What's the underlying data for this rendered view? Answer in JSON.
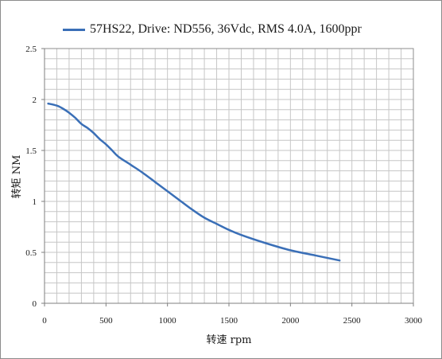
{
  "chart_data": {
    "type": "line",
    "title": "",
    "xlabel": "转速 rpm",
    "ylabel": "转矩 NM",
    "xlim": [
      0,
      3000
    ],
    "ylim": [
      0,
      2.5
    ],
    "x_ticks": [
      "0",
      "500",
      "1000",
      "1500",
      "2000",
      "2500",
      "3000"
    ],
    "y_ticks": [
      "0",
      "0.5",
      "1",
      "1.5",
      "2",
      "2.5"
    ],
    "grid": true,
    "legend_position": "top",
    "series": [
      {
        "name": "57HS22, Drive: ND556, 36Vdc, RMS 4.0A, 1600ppr",
        "color": "#3a6fb7",
        "x": [
          30,
          100,
          150,
          200,
          250,
          300,
          350,
          400,
          450,
          500,
          550,
          600,
          700,
          800,
          900,
          1000,
          1100,
          1200,
          1300,
          1400,
          1500,
          1600,
          1800,
          2000,
          2200,
          2400
        ],
        "y": [
          1.96,
          1.94,
          1.91,
          1.87,
          1.82,
          1.76,
          1.72,
          1.67,
          1.61,
          1.56,
          1.5,
          1.44,
          1.36,
          1.28,
          1.19,
          1.1,
          1.01,
          0.92,
          0.84,
          0.78,
          0.72,
          0.67,
          0.59,
          0.52,
          0.47,
          0.42
        ]
      }
    ]
  }
}
